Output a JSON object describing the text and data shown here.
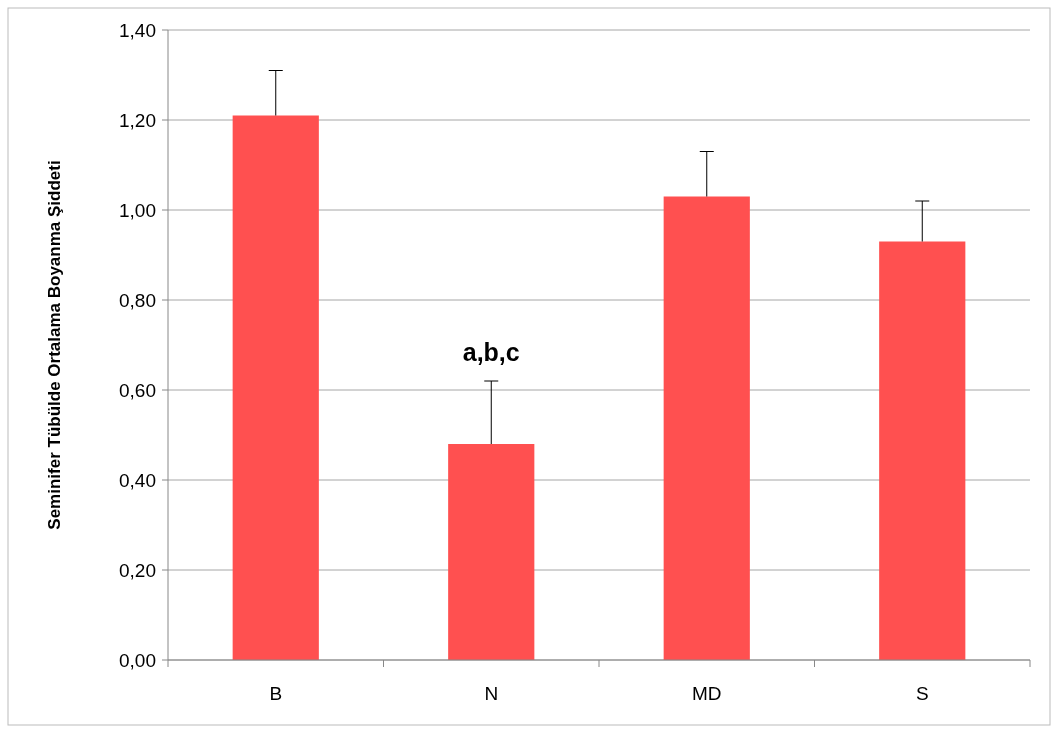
{
  "chart_data": {
    "type": "bar",
    "ylabel": "Seminifer Tübülde Ortalama Boyanma Şiddeti",
    "categories": [
      "B",
      "N",
      "MD",
      "S"
    ],
    "values": [
      1.21,
      0.48,
      1.03,
      0.93
    ],
    "errors": [
      [
        1.21,
        1.31
      ],
      [
        0.48,
        0.62
      ],
      [
        1.03,
        1.13
      ],
      [
        0.93,
        1.02
      ]
    ],
    "color": "#ff5050",
    "ylim": [
      0,
      1.4
    ],
    "yticks": [
      {
        "value": 0,
        "label": "0,00"
      },
      {
        "value": 0.2,
        "label": "0,20"
      },
      {
        "value": 0.4,
        "label": "0,40"
      },
      {
        "value": 0.6,
        "label": "0,60"
      },
      {
        "value": 0.8,
        "label": "0,80"
      },
      {
        "value": 1,
        "label": "1,00"
      },
      {
        "value": 1.2,
        "label": "1,20"
      },
      {
        "value": 1.4,
        "label": "1,40"
      }
    ],
    "grid": "y",
    "annotations": [
      {
        "text": "a,b,c",
        "x": "N",
        "y": 0.62
      }
    ]
  }
}
